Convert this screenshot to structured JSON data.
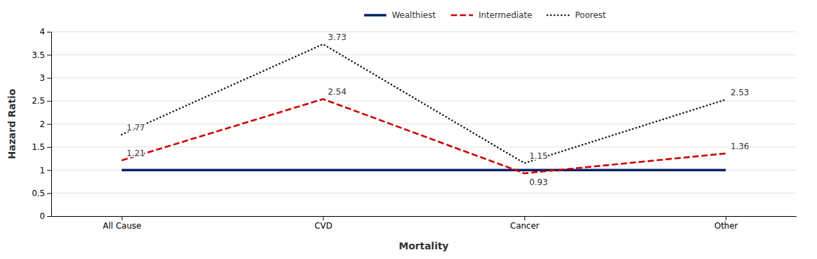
{
  "chart_data": {
    "type": "line",
    "categories": [
      "All Cause",
      "CVD",
      "Cancer",
      "Other"
    ],
    "series": [
      {
        "name": "Wealthiest",
        "color": "#002060",
        "line_style": "solid",
        "data_labels": false,
        "values": [
          1.0,
          1.0,
          1.0,
          1.0
        ]
      },
      {
        "name": "Intermediate",
        "color": "#cc0000",
        "line_style": "dashed",
        "data_labels": true,
        "values": [
          1.21,
          2.54,
          0.93,
          1.36
        ]
      },
      {
        "name": "Poorest",
        "color": "#1a1a1a",
        "line_style": "dotted",
        "data_labels": true,
        "values": [
          1.77,
          3.73,
          1.15,
          2.53
        ]
      }
    ],
    "xlabel": "Mortality",
    "ylabel": "Hazard Ratio",
    "ylim": [
      0,
      4
    ],
    "yticks": [
      0,
      0.5,
      1,
      1.5,
      2,
      2.5,
      3,
      3.5,
      4
    ],
    "grid": true,
    "legend": "top"
  }
}
